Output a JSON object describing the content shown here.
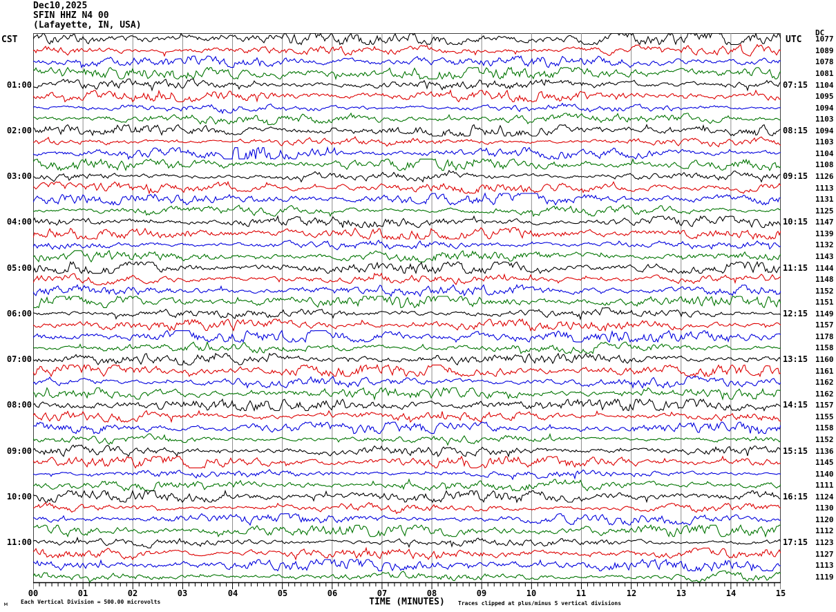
{
  "header": {
    "date": "Dec10,2025",
    "station": "SFIN HHZ N4 00",
    "location": "(Lafayette, IN, USA)"
  },
  "left_axis": {
    "tz_label": "CST"
  },
  "right_axis": {
    "tz_label": "UTC",
    "dc_label": "DC"
  },
  "x_axis": {
    "title": "TIME (MINUTES)"
  },
  "footer": {
    "left_note": "Each Vertical Division =  500.00 microvolts",
    "right_note": "Traces clipped at plus/minus 5 vertical divisions",
    "corner_glyph": "м"
  },
  "colors": {
    "black": "#000000",
    "red": "#dd0000",
    "blue": "#0000dd",
    "green": "#007400",
    "grid": "#8c8c8c",
    "border": "#404040"
  },
  "chart_data": {
    "type": "line",
    "subtype": "helicorder-seismogram",
    "title": "SFIN HHZ N4 00 helicorder seismogram, Dec10,2025, Lafayette IN USA",
    "xlabel": "TIME (MINUTES)",
    "x_range_minutes": [
      0,
      15
    ],
    "x_ticks": [
      "00",
      "01",
      "02",
      "03",
      "04",
      "05",
      "06",
      "07",
      "08",
      "09",
      "10",
      "11",
      "12",
      "13",
      "14",
      "15"
    ],
    "minor_ticks_per_minute": 8,
    "rows": 48,
    "minutes_per_row": 15,
    "row_color_cycle": [
      "#000000",
      "#dd0000",
      "#0000dd",
      "#007400"
    ],
    "left_time_labels_cst": [
      "01:00",
      "02:00",
      "03:00",
      "04:00",
      "05:00",
      "06:00",
      "07:00",
      "08:00",
      "09:00",
      "10:00",
      "11:00"
    ],
    "right_time_labels_utc": [
      "07:15",
      "08:15",
      "09:15",
      "10:15",
      "11:15",
      "12:15",
      "13:15",
      "14:15",
      "15:15",
      "16:15",
      "17:15"
    ],
    "hour_label_row_indices": [
      4,
      8,
      12,
      16,
      20,
      24,
      28,
      32,
      36,
      40,
      44
    ],
    "dc_offsets_per_row": [
      1077,
      1089,
      1078,
      1081,
      1104,
      1095,
      1094,
      1103,
      1094,
      1103,
      1104,
      1108,
      1126,
      1113,
      1131,
      1125,
      1147,
      1139,
      1132,
      1143,
      1144,
      1148,
      1152,
      1151,
      1149,
      1157,
      1178,
      1158,
      1160,
      1161,
      1162,
      1162,
      1157,
      1155,
      1158,
      1152,
      1136,
      1145,
      1140,
      1111,
      1124,
      1130,
      1120,
      1112,
      1123,
      1127,
      1113,
      1119
    ],
    "microvolts_per_division": 500,
    "clip_divisions": 5,
    "events": [
      {
        "row_index": 10,
        "start_minute": 3.8,
        "end_minute": 5.3,
        "description": "High-amplitude clipped burst on blue trace (02:30 CST / 08:45 UTC row)"
      }
    ]
  }
}
